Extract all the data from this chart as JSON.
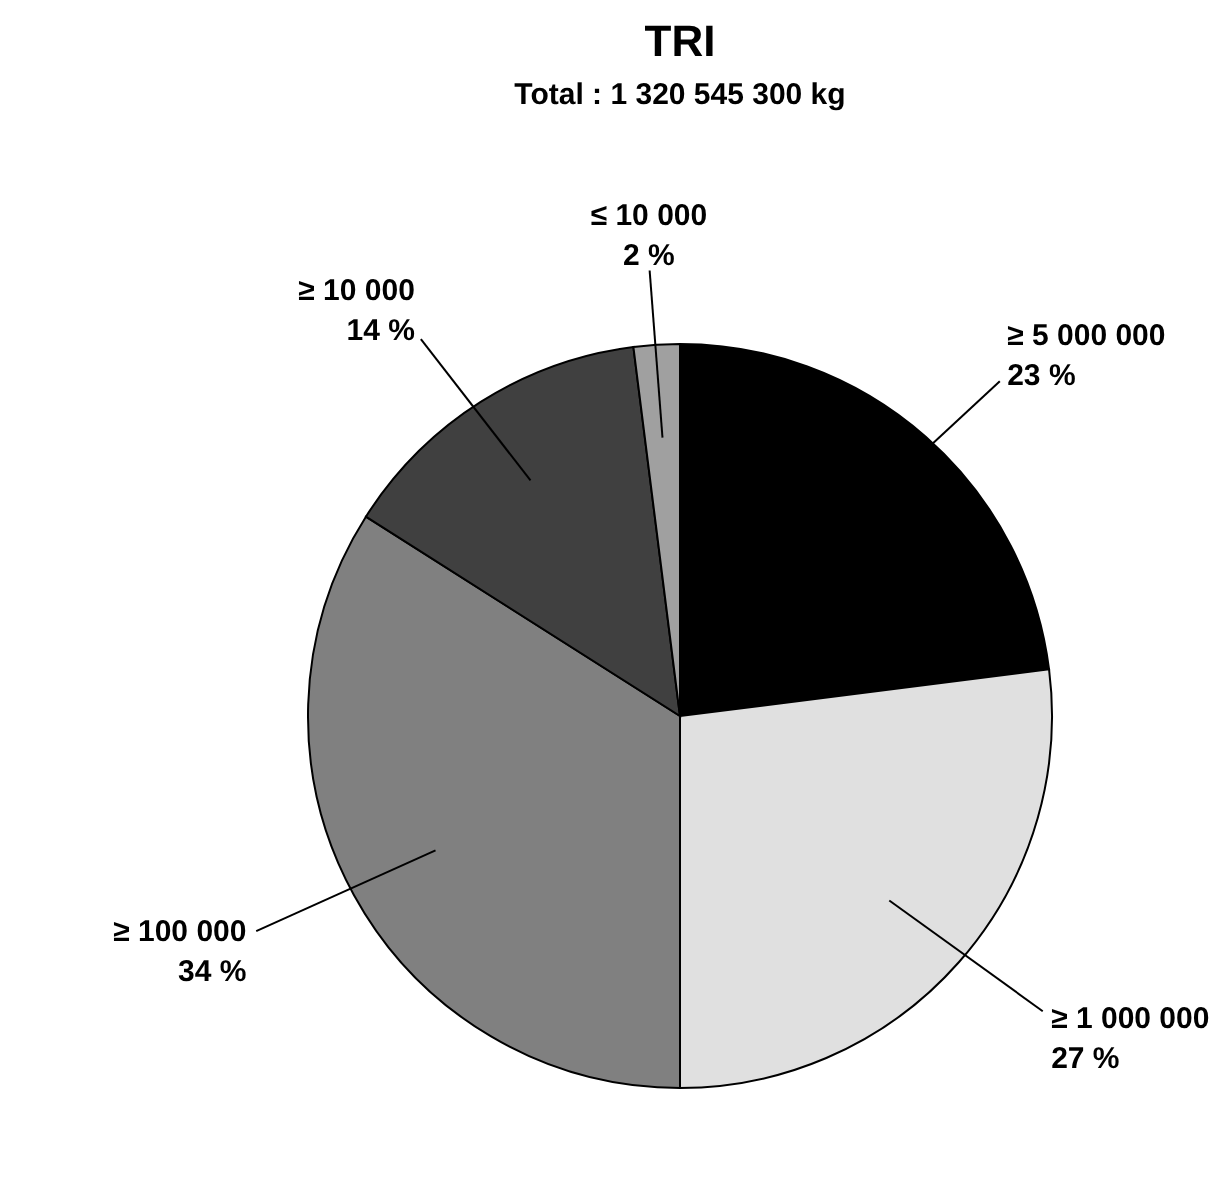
{
  "chart_data": {
    "type": "pie",
    "title": "TRI",
    "subtitle": "Total : 1 320 545 300 kg",
    "categories": [
      "≥ 5 000 000",
      "≥ 1 000 000",
      "≥ 100 000",
      "≥ 10 000",
      "≤ 10 000"
    ],
    "values": [
      23,
      27,
      34,
      14,
      2
    ],
    "value_labels": [
      "23 %",
      "27 %",
      "34 %",
      "14 %",
      "2 %"
    ],
    "colors": [
      "#000000",
      "#e0e0e0",
      "#808080",
      "#404040",
      "#a0a0a0"
    ]
  }
}
